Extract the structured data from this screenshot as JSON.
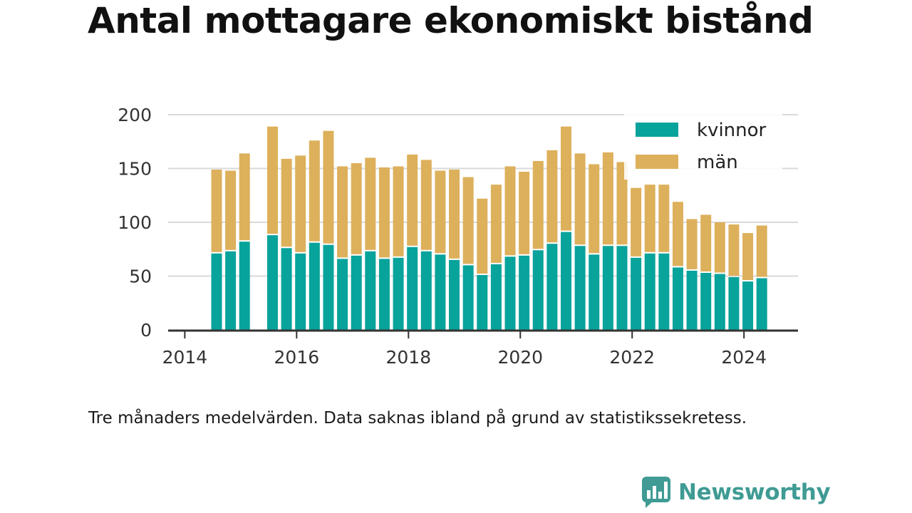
{
  "title": "Antal mottagare ekonomiskt bistånd",
  "caption": "Tre månaders medelvärden. Data saknas ibland på grund av statistikssekretess.",
  "brand": {
    "name": "Newsworthy",
    "icon": "newsworthy-logo-icon"
  },
  "colors": {
    "kvinnor": "#08a39b",
    "man": "#ddb05c",
    "grid": "#d9d9d9",
    "axis": "#333333"
  },
  "chart_data": {
    "type": "bar",
    "stacked": true,
    "title": "Antal mottagare ekonomiskt bistånd",
    "xlabel": "",
    "ylabel": "",
    "ylim": [
      0,
      200
    ],
    "yticks": [
      0,
      50,
      100,
      150,
      200
    ],
    "xticks": [
      "2014",
      "2016",
      "2018",
      "2020",
      "2022",
      "2024"
    ],
    "grid": true,
    "legend_position": "top-right",
    "categories": [
      "2014-Q2",
      "2014-Q3",
      "2014-Q4",
      "2015-Q1",
      "2015-Q2",
      "2015-Q3",
      "2015-Q4",
      "2016-Q1",
      "2016-Q2",
      "2016-Q3",
      "2016-Q4",
      "2017-Q1",
      "2017-Q2",
      "2017-Q3",
      "2017-Q4",
      "2018-Q1",
      "2018-Q2",
      "2018-Q3",
      "2018-Q4",
      "2019-Q1",
      "2019-Q2",
      "2019-Q3",
      "2019-Q4",
      "2020-Q1",
      "2020-Q2",
      "2020-Q3",
      "2020-Q4",
      "2021-Q1",
      "2021-Q2",
      "2021-Q3",
      "2021-Q4",
      "2022-Q1",
      "2022-Q2",
      "2022-Q3",
      "2022-Q4",
      "2023-Q1",
      "2023-Q2",
      "2023-Q3",
      "2023-Q4",
      "2024-Q1"
    ],
    "series": [
      {
        "name": "kvinnor",
        "values": [
          71,
          73,
          82,
          null,
          88,
          76,
          71,
          81,
          79,
          66,
          69,
          73,
          66,
          67,
          77,
          73,
          70,
          65,
          60,
          51,
          61,
          68,
          69,
          74,
          80,
          91,
          78,
          70,
          78,
          78,
          67,
          71,
          71,
          58,
          55,
          53,
          52,
          49,
          45,
          48
        ]
      },
      {
        "name": "män",
        "values": [
          78,
          75,
          82,
          null,
          101,
          83,
          91,
          95,
          106,
          86,
          86,
          87,
          85,
          85,
          86,
          85,
          78,
          84,
          82,
          71,
          74,
          84,
          78,
          83,
          87,
          98,
          86,
          84,
          87,
          78,
          65,
          64,
          64,
          61,
          48,
          54,
          48,
          49,
          45,
          49
        ]
      }
    ],
    "legend": [
      "kvinnor",
      "män"
    ]
  }
}
